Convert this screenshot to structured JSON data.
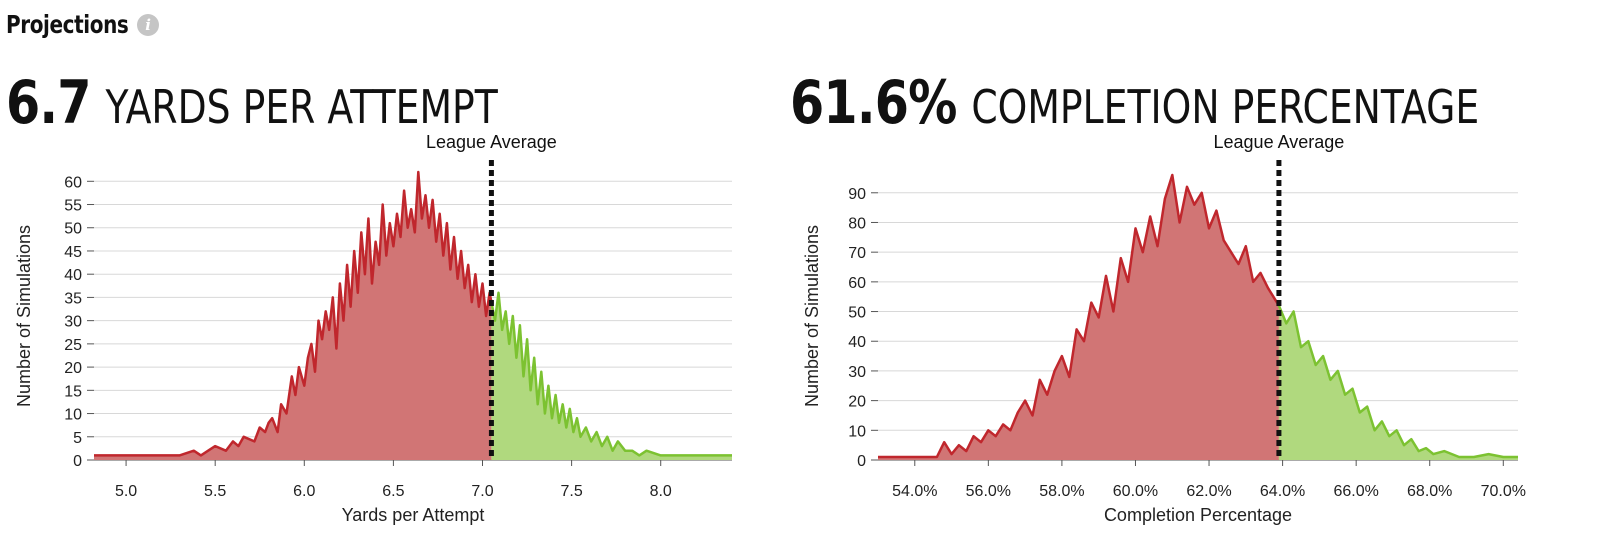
{
  "header": {
    "title": "Projections",
    "info_icon": "info-icon"
  },
  "panels": [
    {
      "value": "6.7",
      "label": "YARDS PER ATTEMPT"
    },
    {
      "value": "61.6%",
      "label": "COMPLETION PERCENTAGE"
    }
  ],
  "colors": {
    "below": "#c0272d",
    "below_fill": "#d17575",
    "above": "#7cc231",
    "above_fill": "#b0d97e",
    "grid": "#d8d8d8",
    "reference": "#111111"
  },
  "chart_data": [
    {
      "type": "area",
      "xlabel": "Yards per Attempt",
      "ylabel": "Number of Simulations",
      "xlim": [
        4.82,
        8.4
      ],
      "ylim": [
        0,
        62
      ],
      "xticks": [
        5.0,
        5.5,
        6.0,
        6.5,
        7.0,
        7.5,
        8.0
      ],
      "xtick_labels": [
        "5.0",
        "5.5",
        "6.0",
        "6.5",
        "7.0",
        "7.5",
        "8.0"
      ],
      "yticks": [
        0,
        5,
        10,
        15,
        20,
        25,
        30,
        35,
        40,
        45,
        50,
        55,
        60
      ],
      "ytick_labels": [
        "0",
        "5",
        "10",
        "15",
        "20",
        "25",
        "30",
        "35",
        "40",
        "45",
        "50",
        "55",
        "60"
      ],
      "reference_line": {
        "label": "League Average",
        "x": 7.05
      },
      "series": [
        {
          "x": [
            4.82,
            5.2,
            5.3,
            5.38,
            5.42,
            5.46,
            5.5,
            5.56,
            5.6,
            5.63,
            5.66,
            5.72,
            5.75,
            5.78,
            5.8,
            5.82,
            5.85,
            5.87,
            5.9,
            5.93,
            5.95,
            5.97,
            6.0,
            6.02,
            6.04,
            6.06,
            6.08,
            6.1,
            6.12,
            6.14,
            6.16,
            6.18,
            6.2,
            6.22,
            6.24,
            6.26,
            6.28,
            6.3,
            6.32,
            6.34,
            6.36,
            6.38,
            6.4,
            6.42,
            6.44,
            6.46,
            6.48,
            6.5,
            6.52,
            6.54,
            6.56,
            6.58,
            6.6,
            6.62,
            6.64,
            6.66,
            6.68,
            6.7,
            6.72,
            6.74,
            6.76,
            6.78,
            6.8,
            6.82,
            6.84,
            6.86,
            6.88,
            6.9,
            6.92,
            6.94,
            6.96,
            6.98,
            7.0,
            7.02,
            7.04,
            7.05
          ],
          "y": [
            1,
            1,
            1,
            2,
            1,
            2,
            3,
            2,
            4,
            3,
            5,
            4,
            7,
            6,
            8,
            9,
            6,
            12,
            10,
            18,
            14,
            20,
            16,
            22,
            25,
            19,
            30,
            26,
            32,
            28,
            35,
            24,
            38,
            30,
            42,
            33,
            45,
            36,
            49,
            40,
            52,
            38,
            47,
            42,
            55,
            44,
            51,
            46,
            53,
            48,
            58,
            50,
            54,
            49,
            62,
            52,
            57,
            50,
            56,
            47,
            53,
            44,
            51,
            41,
            48,
            39,
            45,
            37,
            42,
            34,
            40,
            33,
            38,
            31,
            36,
            34
          ]
        },
        {
          "x": [
            7.05,
            7.07,
            7.09,
            7.11,
            7.13,
            7.15,
            7.17,
            7.19,
            7.21,
            7.23,
            7.25,
            7.27,
            7.29,
            7.31,
            7.33,
            7.35,
            7.37,
            7.39,
            7.41,
            7.43,
            7.45,
            7.47,
            7.49,
            7.51,
            7.53,
            7.55,
            7.58,
            7.61,
            7.64,
            7.67,
            7.7,
            7.73,
            7.76,
            7.8,
            7.84,
            7.88,
            7.92,
            8.0,
            8.1,
            8.2,
            8.4
          ],
          "y": [
            34,
            30,
            36,
            28,
            32,
            25,
            31,
            22,
            29,
            18,
            26,
            15,
            22,
            12,
            19,
            10,
            16,
            9,
            14,
            8,
            12,
            7,
            11,
            6,
            9,
            5,
            7,
            4,
            6,
            3,
            5,
            2,
            4,
            2,
            2,
            1,
            2,
            1,
            1,
            1,
            1
          ]
        }
      ]
    },
    {
      "type": "area",
      "xlabel": "Completion Percentage",
      "ylabel": "Number of Simulations",
      "xlim": [
        53.0,
        70.4
      ],
      "ylim": [
        0,
        97
      ],
      "xticks": [
        54,
        56,
        58,
        60,
        62,
        64,
        66,
        68,
        70
      ],
      "xtick_labels": [
        "54.0%",
        "56.0%",
        "58.0%",
        "60.0%",
        "62.0%",
        "64.0%",
        "66.0%",
        "68.0%",
        "70.0%"
      ],
      "yticks": [
        0,
        10,
        20,
        30,
        40,
        50,
        60,
        70,
        80,
        90
      ],
      "ytick_labels": [
        "0",
        "10",
        "20",
        "30",
        "40",
        "50",
        "60",
        "70",
        "80",
        "90"
      ],
      "reference_line": {
        "label": "League Average",
        "x": 63.9
      },
      "series": [
        {
          "x": [
            53.0,
            54.6,
            54.8,
            55.0,
            55.2,
            55.4,
            55.6,
            55.8,
            56.0,
            56.2,
            56.4,
            56.6,
            56.8,
            57.0,
            57.2,
            57.4,
            57.6,
            57.8,
            58.0,
            58.2,
            58.4,
            58.6,
            58.8,
            59.0,
            59.2,
            59.4,
            59.6,
            59.8,
            60.0,
            60.2,
            60.4,
            60.6,
            60.8,
            61.0,
            61.2,
            61.4,
            61.6,
            61.8,
            62.0,
            62.2,
            62.4,
            62.6,
            62.8,
            63.0,
            63.2,
            63.4,
            63.6,
            63.8,
            63.9
          ],
          "y": [
            1,
            1,
            6,
            2,
            5,
            3,
            8,
            6,
            10,
            8,
            12,
            10,
            16,
            20,
            15,
            27,
            22,
            30,
            35,
            28,
            44,
            40,
            53,
            48,
            62,
            50,
            68,
            60,
            78,
            70,
            82,
            72,
            88,
            96,
            80,
            92,
            86,
            90,
            78,
            84,
            74,
            70,
            66,
            72,
            60,
            63,
            58,
            54,
            52
          ]
        },
        {
          "x": [
            63.9,
            64.1,
            64.3,
            64.5,
            64.7,
            64.9,
            65.1,
            65.3,
            65.5,
            65.7,
            65.9,
            66.1,
            66.3,
            66.5,
            66.7,
            66.9,
            67.1,
            67.3,
            67.5,
            67.7,
            67.9,
            68.1,
            68.4,
            68.8,
            69.2,
            69.6,
            70.0,
            70.4
          ],
          "y": [
            52,
            46,
            50,
            38,
            40,
            32,
            35,
            27,
            30,
            22,
            24,
            16,
            18,
            10,
            13,
            8,
            10,
            5,
            7,
            3,
            4,
            2,
            3,
            1,
            1,
            2,
            1,
            1
          ]
        }
      ]
    }
  ]
}
